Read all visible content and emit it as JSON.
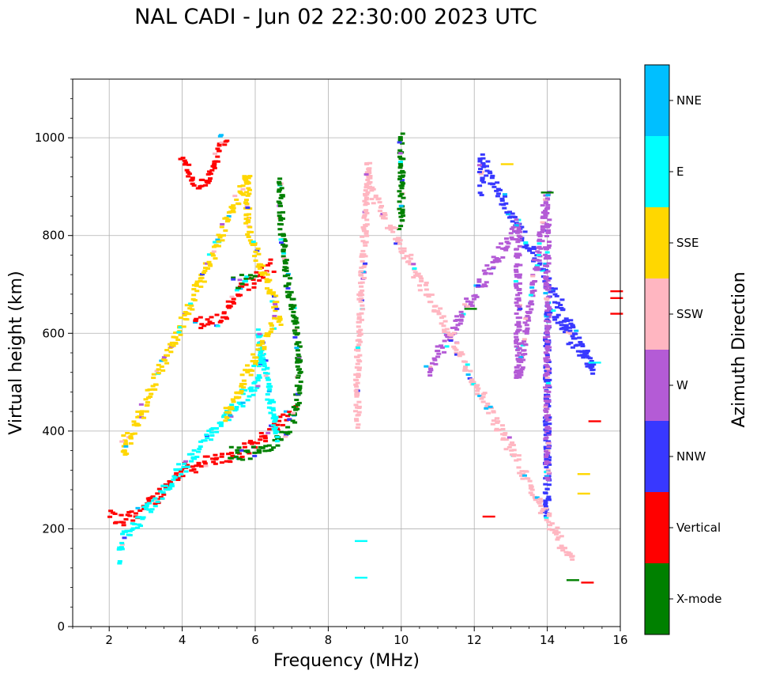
{
  "title": "NAL CADI - Jun 02 22:30:00 2023 UTC",
  "chart_data": {
    "type": "scatter",
    "title": "NAL CADI - Jun 02 22:30:00 2023 UTC",
    "xlabel": "Frequency (MHz)",
    "ylabel": "Virtual height (km)",
    "xlim": [
      1,
      16
    ],
    "ylim": [
      0,
      1120
    ],
    "xticks": [
      2,
      4,
      6,
      8,
      10,
      12,
      14,
      16
    ],
    "yticks": [
      0,
      200,
      400,
      600,
      800,
      1000
    ],
    "grid": true,
    "colorbar": {
      "label": "Azimuth Direction",
      "categories": [
        {
          "name": "X-mode",
          "color": "#008000"
        },
        {
          "name": "Vertical",
          "color": "#ff0000"
        },
        {
          "name": "NNW",
          "color": "#3838ff"
        },
        {
          "name": "W",
          "color": "#b45bd6"
        },
        {
          "name": "SSW",
          "color": "#ffb6c1"
        },
        {
          "name": "SSE",
          "color": "#ffd700"
        },
        {
          "name": "E",
          "color": "#00ffff"
        },
        {
          "name": "NNE",
          "color": "#00bfff"
        }
      ]
    },
    "traces": [
      {
        "category": "Vertical",
        "points": [
          [
            2.0,
            230
          ],
          [
            2.2,
            220
          ],
          [
            2.4,
            215
          ],
          [
            2.7,
            232
          ],
          [
            3.0,
            245
          ],
          [
            3.3,
            262
          ],
          [
            3.6,
            292
          ],
          [
            3.8,
            305
          ],
          [
            4.0,
            318
          ],
          [
            4.3,
            328
          ],
          [
            4.6,
            335
          ],
          [
            5.0,
            340
          ],
          [
            5.4,
            350
          ],
          [
            5.8,
            362
          ],
          [
            6.1,
            380
          ],
          [
            6.4,
            400
          ],
          [
            6.8,
            428
          ],
          [
            7.1,
            445
          ]
        ]
      },
      {
        "category": "Vertical",
        "points": [
          [
            4.3,
            628
          ],
          [
            4.6,
            618
          ],
          [
            4.9,
            622
          ],
          [
            5.2,
            640
          ],
          [
            5.4,
            662
          ],
          [
            5.6,
            690
          ],
          [
            5.9,
            705
          ],
          [
            6.2,
            722
          ],
          [
            6.5,
            742
          ]
        ]
      },
      {
        "category": "Vertical",
        "points": [
          [
            4.0,
            952
          ],
          [
            4.3,
            912
          ],
          [
            4.6,
            902
          ],
          [
            4.8,
            930
          ],
          [
            5.0,
            975
          ],
          [
            5.2,
            1008
          ]
        ]
      },
      {
        "category": "X-mode",
        "points": [
          [
            5.3,
            358
          ],
          [
            5.8,
            352
          ],
          [
            6.2,
            362
          ],
          [
            6.6,
            378
          ],
          [
            6.9,
            400
          ],
          [
            7.1,
            440
          ],
          [
            7.2,
            490
          ],
          [
            7.2,
            560
          ],
          [
            7.1,
            620
          ],
          [
            6.9,
            700
          ],
          [
            6.8,
            760
          ],
          [
            6.7,
            840
          ],
          [
            6.7,
            920
          ]
        ]
      },
      {
        "category": "X-mode",
        "points": [
          [
            5.4,
            700
          ],
          [
            5.8,
            708
          ],
          [
            6.0,
            712
          ]
        ]
      },
      {
        "category": "X-mode",
        "points": [
          [
            10.0,
            820
          ],
          [
            10.0,
            860
          ],
          [
            10.0,
            900
          ],
          [
            10.0,
            950
          ],
          [
            10.0,
            1005
          ]
        ]
      },
      {
        "category": "E",
        "points": [
          [
            2.3,
            140
          ],
          [
            2.4,
            180
          ],
          [
            5.3,
            440
          ],
          [
            5.6,
            460
          ],
          [
            5.9,
            480
          ],
          [
            6.1,
            520
          ],
          [
            6.2,
            560
          ],
          [
            6.1,
            600
          ],
          [
            6.5,
            430
          ],
          [
            6.6,
            380
          ]
        ]
      },
      {
        "category": "SSE",
        "points": [
          [
            2.4,
            390
          ],
          [
            2.4,
            360
          ],
          [
            5.8,
            920
          ],
          [
            5.8,
            890
          ],
          [
            5.8,
            810
          ],
          [
            6.7,
            630
          ],
          [
            6.5,
            620
          ],
          [
            5.2,
            430
          ],
          [
            5.3,
            425
          ]
        ]
      },
      {
        "category": "NNW",
        "points": [
          [
            14.0,
            230
          ],
          [
            14.0,
            490
          ],
          [
            14.0,
            650
          ],
          [
            15.3,
            525
          ],
          [
            12.2,
            955
          ],
          [
            12.2,
            892
          ]
        ]
      },
      {
        "category": "W",
        "points": [
          [
            14.0,
            300
          ],
          [
            14.0,
            450
          ],
          [
            14.0,
            575
          ],
          [
            14.0,
            720
          ],
          [
            14.0,
            880
          ],
          [
            13.2,
            505
          ],
          [
            13.2,
            825
          ],
          [
            10.7,
            520
          ]
        ]
      },
      {
        "category": "SSW",
        "points": [
          [
            8.8,
            415
          ],
          [
            8.8,
            540
          ],
          [
            9.1,
            938
          ],
          [
            9.1,
            903
          ],
          [
            14.7,
            130
          ]
        ]
      }
    ],
    "isolated_marks": [
      {
        "category": "Vertical",
        "x": 15.9,
        "y": 640
      },
      {
        "category": "Vertical",
        "x": 15.9,
        "y": 672
      },
      {
        "category": "Vertical",
        "x": 15.9,
        "y": 686
      },
      {
        "category": "Vertical",
        "x": 15.3,
        "y": 420
      },
      {
        "category": "Vertical",
        "x": 15.1,
        "y": 90
      },
      {
        "category": "Vertical",
        "x": 12.4,
        "y": 225
      },
      {
        "category": "SSE",
        "x": 15.0,
        "y": 312
      },
      {
        "category": "SSE",
        "x": 15.0,
        "y": 272
      },
      {
        "category": "SSE",
        "x": 12.9,
        "y": 946
      },
      {
        "category": "E",
        "x": 15.3,
        "y": 540
      },
      {
        "category": "E",
        "x": 8.9,
        "y": 100
      },
      {
        "category": "E",
        "x": 8.9,
        "y": 175
      },
      {
        "category": "X-mode",
        "x": 14.7,
        "y": 95
      },
      {
        "category": "X-mode",
        "x": 14.0,
        "y": 888
      },
      {
        "category": "X-mode",
        "x": 11.9,
        "y": 650
      }
    ]
  }
}
